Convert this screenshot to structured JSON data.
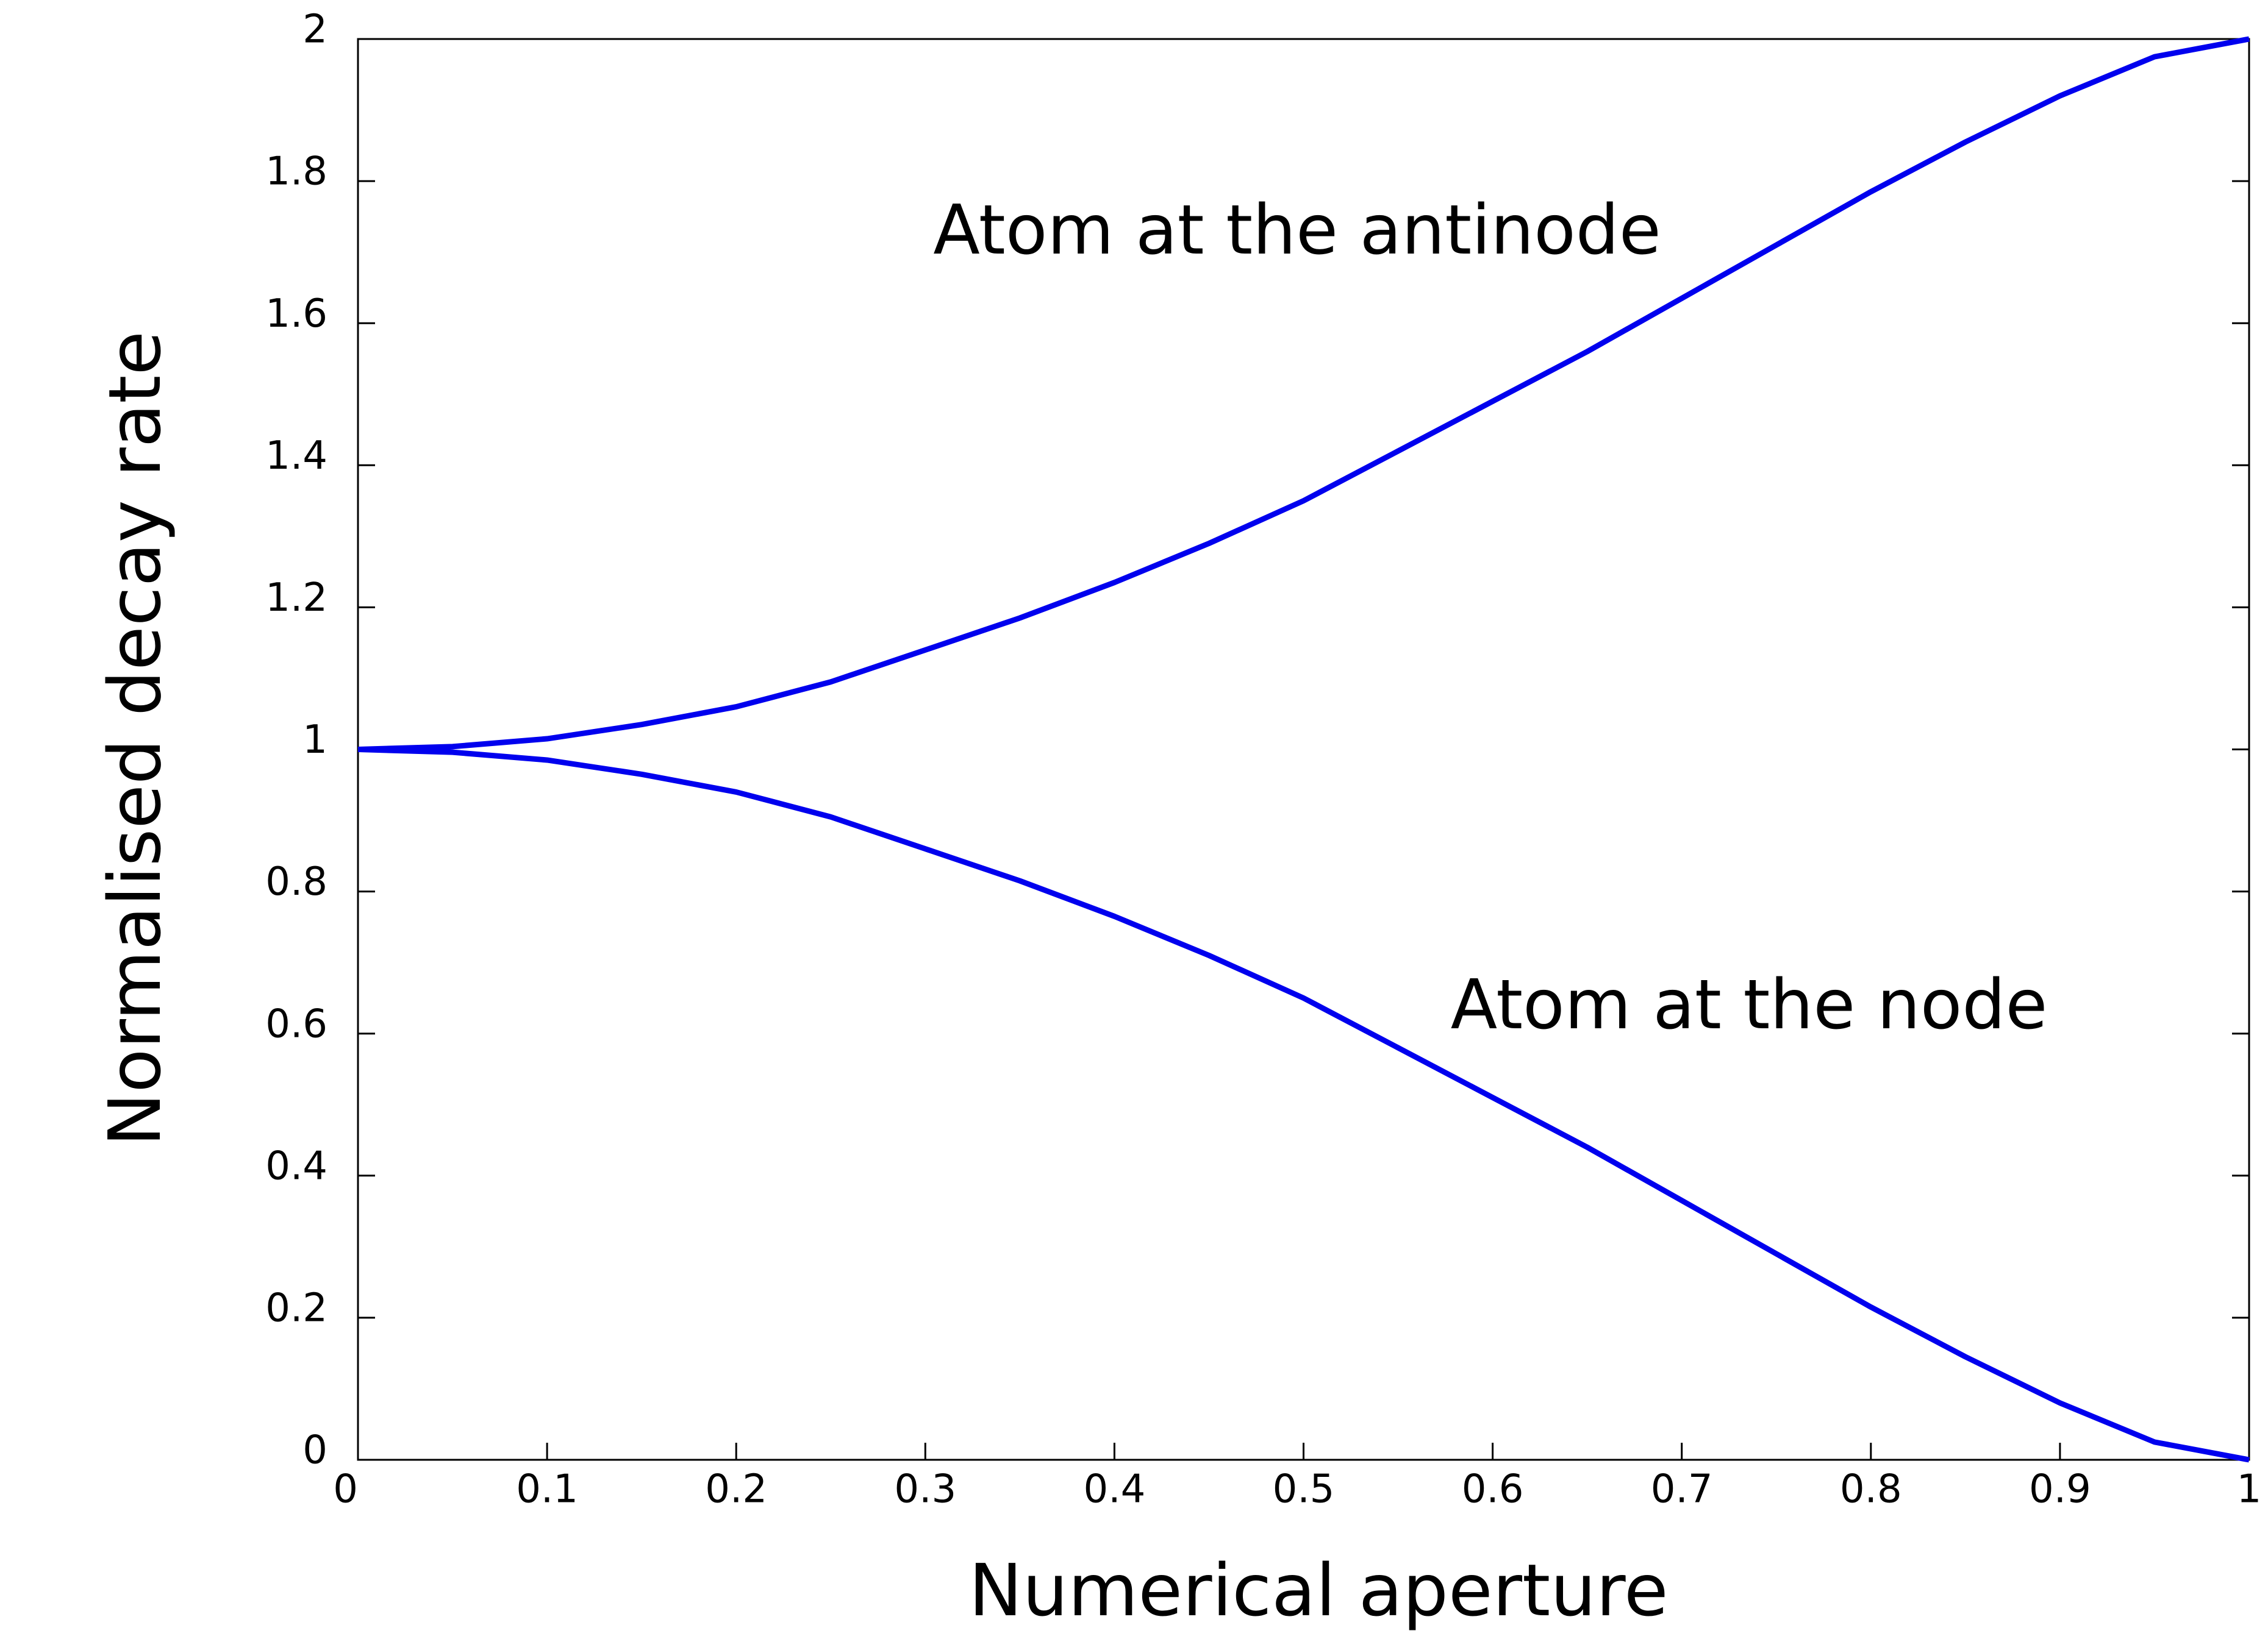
{
  "chart_data": {
    "type": "line",
    "xlabel": "Numerical aperture",
    "ylabel": "Normalised decay rate",
    "annotations": [
      "Atom at the antinode",
      "Atom at the node"
    ],
    "x": [
      0,
      0.05,
      0.1,
      0.15,
      0.2,
      0.25,
      0.3,
      0.35,
      0.4,
      0.45,
      0.5,
      0.55,
      0.6,
      0.65,
      0.7,
      0.75,
      0.8,
      0.85,
      0.9,
      0.95,
      1
    ],
    "series": [
      {
        "color": "#0000ee",
        "values": [
          1,
          1.004,
          1.015,
          1.035,
          1.06,
          1.095,
          1.14,
          1.185,
          1.235,
          1.29,
          1.35,
          1.42,
          1.49,
          1.56,
          1.635,
          1.71,
          1.785,
          1.855,
          1.92,
          1.975,
          2
        ]
      },
      {
        "color": "#0000ee",
        "values": [
          1,
          0.996,
          0.985,
          0.965,
          0.94,
          0.905,
          0.86,
          0.815,
          0.765,
          0.71,
          0.65,
          0.58,
          0.51,
          0.44,
          0.365,
          0.29,
          0.215,
          0.145,
          0.08,
          0.025,
          0
        ]
      }
    ],
    "xlim": [
      0,
      1
    ],
    "ylim": [
      0,
      2
    ],
    "xticks": [
      0,
      0.1,
      0.2,
      0.3,
      0.4,
      0.5,
      0.6,
      0.7,
      0.8,
      0.9,
      1
    ],
    "yticks": [
      0,
      0.2,
      0.4,
      0.6,
      0.8,
      1,
      1.2,
      1.4,
      1.6,
      1.8,
      2
    ],
    "grid": false
  }
}
